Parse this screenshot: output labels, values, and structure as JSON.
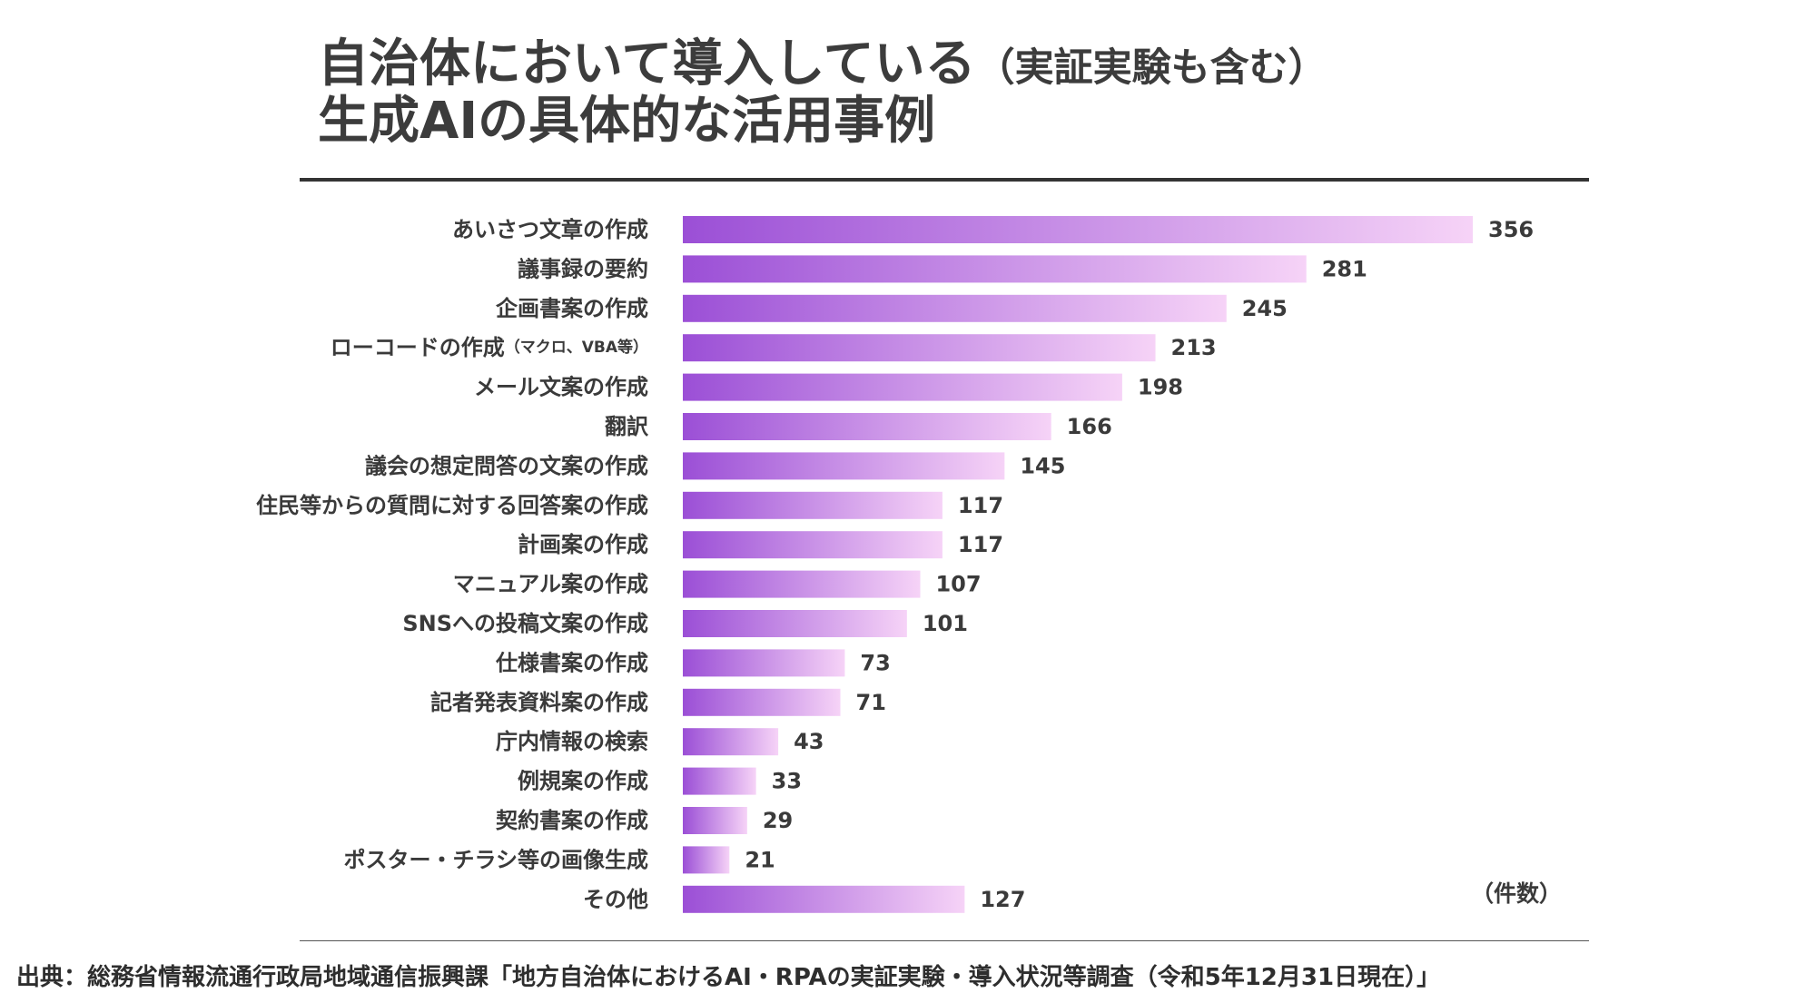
{
  "title": {
    "line1_main": "自治体において導入している",
    "line1_suffix": "（実証実験も含む）",
    "line2": "生成AIの具体的な活用事例"
  },
  "unit_label": "（件数）",
  "source": "出典：総務省情報流通行政局地域通信振興課「地方自治体におけるAI・RPAの実証実験・導入状況等調査（令和5年12月31日現在）」",
  "colors": {
    "bar_start": "#9b4fd6",
    "bar_end": "#f6d3f7",
    "text": "#3a3a3a"
  },
  "chart_data": {
    "type": "bar",
    "orientation": "horizontal",
    "categories": [
      "あいさつ文章の作成",
      "議事録の要約",
      "企画書案の作成",
      "ローコードの作成",
      "メール文案の作成",
      "翻訳",
      "議会の想定問答の文案の作成",
      "住民等からの質問に対する回答案の作成",
      "計画案の作成",
      "マニュアル案の作成",
      "SNSへの投稿文案の作成",
      "仕様書案の作成",
      "記者発表資料案の作成",
      "庁内情報の検索",
      "例規案の作成",
      "契約書案の作成",
      "ポスター・チラシ等の画像生成",
      "その他"
    ],
    "category_notes": [
      "",
      "",
      "",
      "（マクロ、VBA等）",
      "",
      "",
      "",
      "",
      "",
      "",
      "",
      "",
      "",
      "",
      "",
      "",
      "",
      ""
    ],
    "values": [
      356,
      281,
      245,
      213,
      198,
      166,
      145,
      117,
      117,
      107,
      101,
      73,
      71,
      43,
      33,
      29,
      21,
      127
    ],
    "xlim": [
      0,
      356
    ],
    "grid": false,
    "legend": "none"
  }
}
